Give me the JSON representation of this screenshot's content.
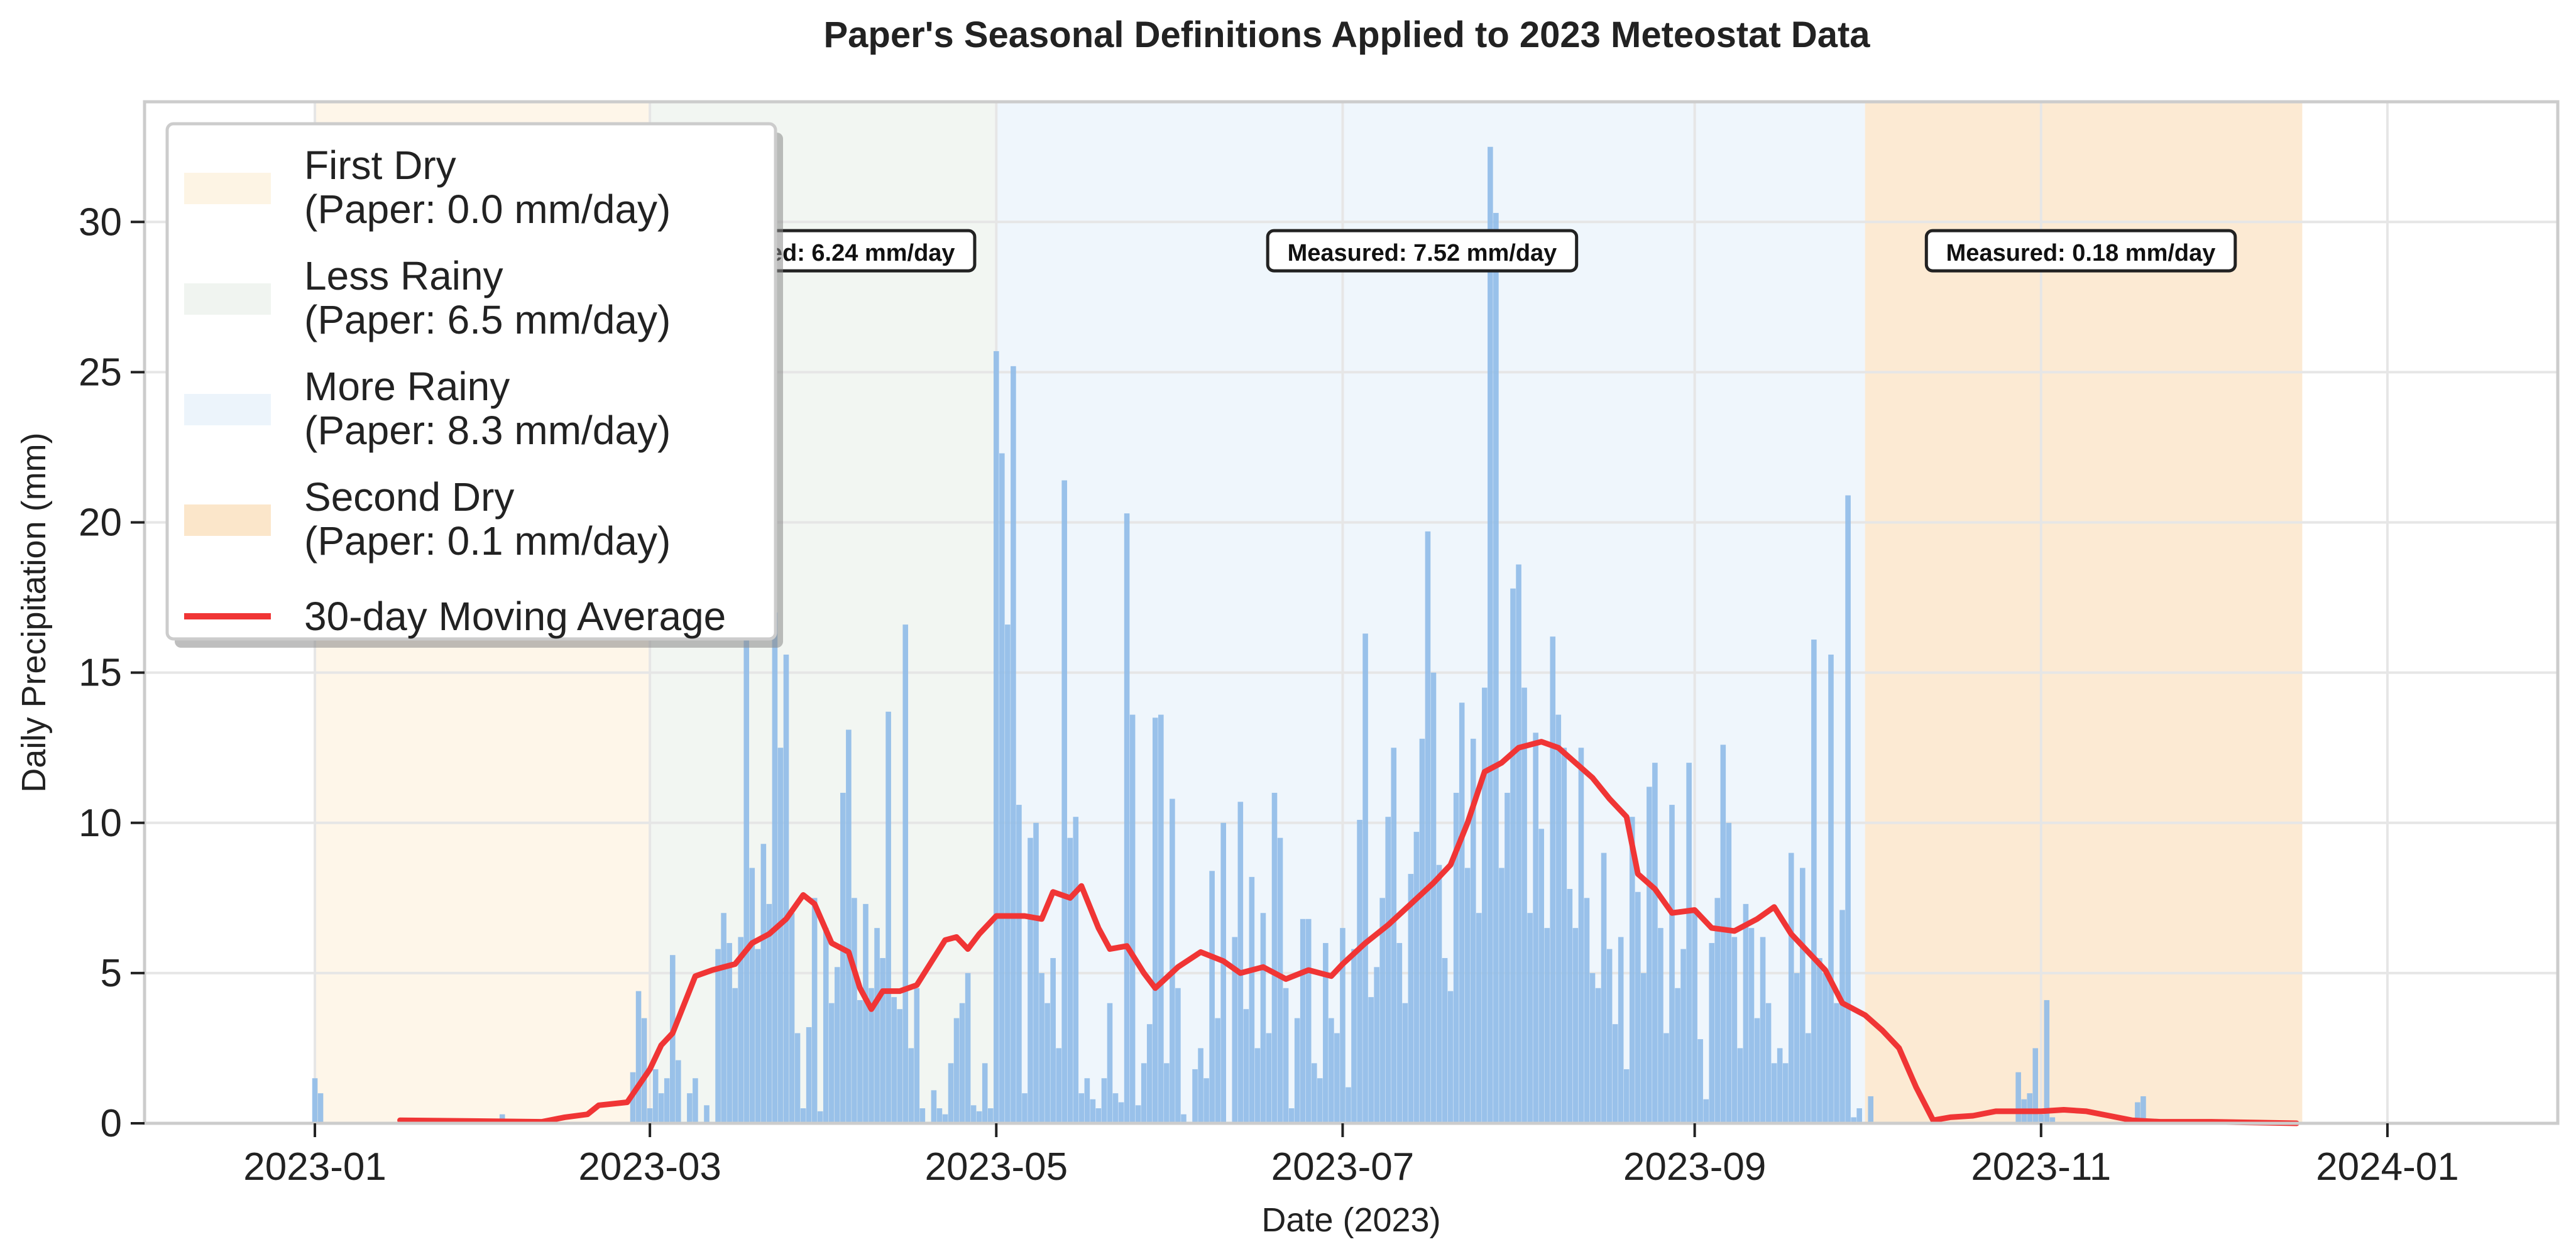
{
  "chart_data": {
    "type": "bar",
    "title": "Paper's Seasonal Definitions Applied to 2023 Meteostat Data",
    "xlabel": "Date (2023)",
    "ylabel": "Daily Precipitation (mm)",
    "xlim": [
      "2022-12-02",
      "2024-01-31"
    ],
    "ylim": [
      0,
      34
    ],
    "grid": true,
    "legend_position": "top-left",
    "x_ticks": [
      "2023-01",
      "2023-03",
      "2023-05",
      "2023-07",
      "2023-09",
      "2023-11",
      "2024-01"
    ],
    "y_ticks": [
      0,
      5,
      10,
      15,
      20,
      25,
      30
    ],
    "seasons": [
      {
        "name": "First Dry",
        "legend": [
          "First Dry",
          "(Paper: 0.0 mm/day)"
        ],
        "start": "2023-01-01",
        "end": "2023-02-28",
        "color": "#fdf3e1"
      },
      {
        "name": "Less Rainy",
        "legend": [
          "Less Rainy",
          "(Paper: 6.5 mm/day)"
        ],
        "start": "2023-03-01",
        "end": "2023-04-30",
        "color": "#eef3ee"
      },
      {
        "name": "More Rainy",
        "legend": [
          "More Rainy",
          "(Paper: 8.3 mm/day)"
        ],
        "start": "2023-05-01",
        "end": "2023-09-30",
        "color": "#eaf3fb"
      },
      {
        "name": "Second Dry",
        "legend": [
          "Second Dry",
          "(Paper: 0.1 mm/day)"
        ],
        "start": "2023-10-01",
        "end": "2023-12-16",
        "color": "#fbe3c4"
      }
    ],
    "annotations": [
      {
        "text": "Measured: 6.24 mm/day",
        "date": "2023-03-31",
        "y": 29
      },
      {
        "text": "Measured: 7.52 mm/day",
        "date": "2023-07-15",
        "y": 29
      },
      {
        "text": "Measured: 0.18 mm/day",
        "date": "2023-11-08",
        "y": 29
      }
    ],
    "bar_color": "#8fbbe8",
    "precip_series": [
      [
        "2023-01-01",
        1.5
      ],
      [
        "2023-01-02",
        1.0
      ],
      [
        "2023-02-03",
        0.3
      ],
      [
        "2023-02-26",
        1.7
      ],
      [
        "2023-02-27",
        4.4
      ],
      [
        "2023-02-28",
        3.5
      ],
      [
        "2023-03-01",
        0.5
      ],
      [
        "2023-03-02",
        1.8
      ],
      [
        "2023-03-03",
        1.0
      ],
      [
        "2023-03-04",
        1.5
      ],
      [
        "2023-03-05",
        5.6
      ],
      [
        "2023-03-06",
        2.1
      ],
      [
        "2023-03-08",
        1.0
      ],
      [
        "2023-03-09",
        1.5
      ],
      [
        "2023-03-11",
        0.6
      ],
      [
        "2023-03-13",
        5.8
      ],
      [
        "2023-03-14",
        7.0
      ],
      [
        "2023-03-15",
        6.0
      ],
      [
        "2023-03-16",
        4.5
      ],
      [
        "2023-03-17",
        6.2
      ],
      [
        "2023-03-18",
        16.8
      ],
      [
        "2023-03-19",
        8.5
      ],
      [
        "2023-03-20",
        5.8
      ],
      [
        "2023-03-21",
        9.3
      ],
      [
        "2023-03-22",
        7.3
      ],
      [
        "2023-03-23",
        17.0
      ],
      [
        "2023-03-24",
        12.5
      ],
      [
        "2023-03-25",
        15.6
      ],
      [
        "2023-03-26",
        7.0
      ],
      [
        "2023-03-27",
        3.0
      ],
      [
        "2023-03-28",
        0.5
      ],
      [
        "2023-03-29",
        3.2
      ],
      [
        "2023-03-30",
        7.5
      ],
      [
        "2023-03-31",
        0.4
      ],
      [
        "2023-04-01",
        6.5
      ],
      [
        "2023-04-02",
        4.0
      ],
      [
        "2023-04-03",
        5.2
      ],
      [
        "2023-04-04",
        11.0
      ],
      [
        "2023-04-05",
        13.1
      ],
      [
        "2023-04-06",
        7.5
      ],
      [
        "2023-04-07",
        4.1
      ],
      [
        "2023-04-08",
        7.3
      ],
      [
        "2023-04-09",
        4.5
      ],
      [
        "2023-04-10",
        6.5
      ],
      [
        "2023-04-11",
        5.5
      ],
      [
        "2023-04-12",
        13.7
      ],
      [
        "2023-04-13",
        4.2
      ],
      [
        "2023-04-14",
        3.8
      ],
      [
        "2023-04-15",
        16.6
      ],
      [
        "2023-04-16",
        2.5
      ],
      [
        "2023-04-17",
        4.5
      ],
      [
        "2023-04-18",
        0.5
      ],
      [
        "2023-04-20",
        1.1
      ],
      [
        "2023-04-21",
        0.5
      ],
      [
        "2023-04-22",
        0.3
      ],
      [
        "2023-04-23",
        2.0
      ],
      [
        "2023-04-24",
        3.5
      ],
      [
        "2023-04-25",
        4.0
      ],
      [
        "2023-04-26",
        5.0
      ],
      [
        "2023-04-27",
        0.6
      ],
      [
        "2023-04-28",
        0.4
      ],
      [
        "2023-04-29",
        2.0
      ],
      [
        "2023-04-30",
        0.5
      ],
      [
        "2023-05-01",
        25.7
      ],
      [
        "2023-05-02",
        22.3
      ],
      [
        "2023-05-03",
        16.6
      ],
      [
        "2023-05-04",
        25.2
      ],
      [
        "2023-05-05",
        10.6
      ],
      [
        "2023-05-06",
        1.0
      ],
      [
        "2023-05-07",
        9.5
      ],
      [
        "2023-05-08",
        10.0
      ],
      [
        "2023-05-09",
        5.0
      ],
      [
        "2023-05-10",
        4.0
      ],
      [
        "2023-05-11",
        5.5
      ],
      [
        "2023-05-12",
        2.5
      ],
      [
        "2023-05-13",
        21.4
      ],
      [
        "2023-05-14",
        9.5
      ],
      [
        "2023-05-15",
        10.2
      ],
      [
        "2023-05-16",
        1.0
      ],
      [
        "2023-05-17",
        1.5
      ],
      [
        "2023-05-18",
        0.8
      ],
      [
        "2023-05-19",
        0.5
      ],
      [
        "2023-05-20",
        1.5
      ],
      [
        "2023-05-21",
        4.0
      ],
      [
        "2023-05-22",
        1.0
      ],
      [
        "2023-05-23",
        0.7
      ],
      [
        "2023-05-24",
        20.3
      ],
      [
        "2023-05-25",
        13.6
      ],
      [
        "2023-05-26",
        0.6
      ],
      [
        "2023-05-27",
        2.0
      ],
      [
        "2023-05-28",
        3.3
      ],
      [
        "2023-05-29",
        13.5
      ],
      [
        "2023-05-30",
        13.6
      ],
      [
        "2023-05-31",
        2.0
      ],
      [
        "2023-06-01",
        10.8
      ],
      [
        "2023-06-02",
        4.5
      ],
      [
        "2023-06-03",
        0.3
      ],
      [
        "2023-06-05",
        1.8
      ],
      [
        "2023-06-06",
        2.5
      ],
      [
        "2023-06-07",
        1.5
      ],
      [
        "2023-06-08",
        8.4
      ],
      [
        "2023-06-09",
        3.5
      ],
      [
        "2023-06-10",
        10.0
      ],
      [
        "2023-06-12",
        6.2
      ],
      [
        "2023-06-13",
        10.7
      ],
      [
        "2023-06-14",
        3.8
      ],
      [
        "2023-06-15",
        8.2
      ],
      [
        "2023-06-16",
        2.5
      ],
      [
        "2023-06-17",
        7.0
      ],
      [
        "2023-06-18",
        3.0
      ],
      [
        "2023-06-19",
        11.0
      ],
      [
        "2023-06-20",
        9.5
      ],
      [
        "2023-06-21",
        4.5
      ],
      [
        "2023-06-22",
        0.5
      ],
      [
        "2023-06-23",
        3.5
      ],
      [
        "2023-06-24",
        6.8
      ],
      [
        "2023-06-25",
        6.8
      ],
      [
        "2023-06-26",
        2.0
      ],
      [
        "2023-06-27",
        1.5
      ],
      [
        "2023-06-28",
        6.0
      ],
      [
        "2023-06-29",
        3.5
      ],
      [
        "2023-06-30",
        3.0
      ],
      [
        "2023-07-01",
        6.5
      ],
      [
        "2023-07-02",
        1.2
      ],
      [
        "2023-07-03",
        5.8
      ],
      [
        "2023-07-04",
        10.1
      ],
      [
        "2023-07-05",
        16.3
      ],
      [
        "2023-07-06",
        4.2
      ],
      [
        "2023-07-07",
        5.2
      ],
      [
        "2023-07-08",
        7.5
      ],
      [
        "2023-07-09",
        10.2
      ],
      [
        "2023-07-10",
        12.5
      ],
      [
        "2023-07-11",
        6.0
      ],
      [
        "2023-07-12",
        4.0
      ],
      [
        "2023-07-13",
        8.3
      ],
      [
        "2023-07-14",
        9.7
      ],
      [
        "2023-07-15",
        12.8
      ],
      [
        "2023-07-16",
        19.7
      ],
      [
        "2023-07-17",
        15.0
      ],
      [
        "2023-07-18",
        8.6
      ],
      [
        "2023-07-19",
        5.5
      ],
      [
        "2023-07-20",
        4.4
      ],
      [
        "2023-07-21",
        11.0
      ],
      [
        "2023-07-22",
        14.0
      ],
      [
        "2023-07-23",
        8.5
      ],
      [
        "2023-07-24",
        12.8
      ],
      [
        "2023-07-25",
        7.0
      ],
      [
        "2023-07-26",
        14.5
      ],
      [
        "2023-07-27",
        32.5
      ],
      [
        "2023-07-28",
        30.3
      ],
      [
        "2023-07-29",
        8.5
      ],
      [
        "2023-07-30",
        11.0
      ],
      [
        "2023-07-31",
        17.8
      ],
      [
        "2023-08-01",
        18.6
      ],
      [
        "2023-08-02",
        14.5
      ],
      [
        "2023-08-03",
        7.0
      ],
      [
        "2023-08-04",
        13.0
      ],
      [
        "2023-08-05",
        9.8
      ],
      [
        "2023-08-06",
        6.5
      ],
      [
        "2023-08-07",
        16.2
      ],
      [
        "2023-08-08",
        13.6
      ],
      [
        "2023-08-09",
        12.5
      ],
      [
        "2023-08-10",
        7.8
      ],
      [
        "2023-08-11",
        6.5
      ],
      [
        "2023-08-12",
        12.5
      ],
      [
        "2023-08-13",
        7.5
      ],
      [
        "2023-08-14",
        5.0
      ],
      [
        "2023-08-15",
        4.5
      ],
      [
        "2023-08-16",
        9.0
      ],
      [
        "2023-08-17",
        5.8
      ],
      [
        "2023-08-18",
        3.3
      ],
      [
        "2023-08-19",
        6.2
      ],
      [
        "2023-08-20",
        1.8
      ],
      [
        "2023-08-21",
        10.2
      ],
      [
        "2023-08-22",
        7.7
      ],
      [
        "2023-08-23",
        5.0
      ],
      [
        "2023-08-24",
        11.2
      ],
      [
        "2023-08-25",
        12.0
      ],
      [
        "2023-08-26",
        6.5
      ],
      [
        "2023-08-27",
        3.0
      ],
      [
        "2023-08-28",
        10.6
      ],
      [
        "2023-08-29",
        4.5
      ],
      [
        "2023-08-30",
        5.8
      ],
      [
        "2023-08-31",
        12.0
      ],
      [
        "2023-09-01",
        7.0
      ],
      [
        "2023-09-02",
        2.8
      ],
      [
        "2023-09-03",
        0.8
      ],
      [
        "2023-09-04",
        6.0
      ],
      [
        "2023-09-05",
        7.5
      ],
      [
        "2023-09-06",
        12.6
      ],
      [
        "2023-09-07",
        10.0
      ],
      [
        "2023-09-08",
        6.2
      ],
      [
        "2023-09-09",
        2.5
      ],
      [
        "2023-09-10",
        7.3
      ],
      [
        "2023-09-11",
        6.5
      ],
      [
        "2023-09-12",
        3.5
      ],
      [
        "2023-09-13",
        6.2
      ],
      [
        "2023-09-14",
        4.0
      ],
      [
        "2023-09-15",
        2.0
      ],
      [
        "2023-09-16",
        2.5
      ],
      [
        "2023-09-17",
        2.0
      ],
      [
        "2023-09-18",
        9.0
      ],
      [
        "2023-09-19",
        5.0
      ],
      [
        "2023-09-20",
        8.5
      ],
      [
        "2023-09-21",
        3.0
      ],
      [
        "2023-09-22",
        16.1
      ],
      [
        "2023-09-23",
        5.5
      ],
      [
        "2023-09-24",
        5.0
      ],
      [
        "2023-09-25",
        15.6
      ],
      [
        "2023-09-26",
        4.0
      ],
      [
        "2023-09-27",
        7.1
      ],
      [
        "2023-09-28",
        20.9
      ],
      [
        "2023-09-29",
        0.2
      ],
      [
        "2023-09-30",
        0.5
      ],
      [
        "2023-10-02",
        0.9
      ],
      [
        "2023-10-28",
        1.7
      ],
      [
        "2023-10-29",
        0.8
      ],
      [
        "2023-10-30",
        1.0
      ],
      [
        "2023-10-31",
        2.5
      ],
      [
        "2023-11-01",
        0.3
      ],
      [
        "2023-11-02",
        4.1
      ],
      [
        "2023-11-03",
        0.2
      ],
      [
        "2023-11-18",
        0.7
      ],
      [
        "2023-11-19",
        0.9
      ]
    ],
    "moving_average": {
      "name": "30-day Moving Average",
      "color": "#f03535",
      "points": [
        [
          "2023-01-16",
          0.1
        ],
        [
          "2023-02-10",
          0.05
        ],
        [
          "2023-02-14",
          0.2
        ],
        [
          "2023-02-18",
          0.3
        ],
        [
          "2023-02-20",
          0.6
        ],
        [
          "2023-02-25",
          0.7
        ],
        [
          "2023-03-01",
          1.8
        ],
        [
          "2023-03-03",
          2.6
        ],
        [
          "2023-03-05",
          3.0
        ],
        [
          "2023-03-09",
          4.9
        ],
        [
          "2023-03-12",
          5.1
        ],
        [
          "2023-03-16",
          5.3
        ],
        [
          "2023-03-19",
          6.0
        ],
        [
          "2023-03-22",
          6.3
        ],
        [
          "2023-03-25",
          6.8
        ],
        [
          "2023-03-28",
          7.6
        ],
        [
          "2023-03-30",
          7.3
        ],
        [
          "2023-04-02",
          6.0
        ],
        [
          "2023-04-05",
          5.7
        ],
        [
          "2023-04-07",
          4.5
        ],
        [
          "2023-04-09",
          3.8
        ],
        [
          "2023-04-11",
          4.4
        ],
        [
          "2023-04-14",
          4.4
        ],
        [
          "2023-04-17",
          4.6
        ],
        [
          "2023-04-20",
          5.5
        ],
        [
          "2023-04-22",
          6.1
        ],
        [
          "2023-04-24",
          6.2
        ],
        [
          "2023-04-26",
          5.8
        ],
        [
          "2023-04-28",
          6.3
        ],
        [
          "2023-05-01",
          6.9
        ],
        [
          "2023-05-03",
          6.9
        ],
        [
          "2023-05-06",
          6.9
        ],
        [
          "2023-05-09",
          6.8
        ],
        [
          "2023-05-11",
          7.7
        ],
        [
          "2023-05-14",
          7.5
        ],
        [
          "2023-05-16",
          7.9
        ],
        [
          "2023-05-19",
          6.5
        ],
        [
          "2023-05-21",
          5.8
        ],
        [
          "2023-05-24",
          5.9
        ],
        [
          "2023-05-27",
          5.0
        ],
        [
          "2023-05-29",
          4.5
        ],
        [
          "2023-06-02",
          5.2
        ],
        [
          "2023-06-06",
          5.7
        ],
        [
          "2023-06-10",
          5.4
        ],
        [
          "2023-06-13",
          5.0
        ],
        [
          "2023-06-17",
          5.2
        ],
        [
          "2023-06-21",
          4.8
        ],
        [
          "2023-06-25",
          5.1
        ],
        [
          "2023-06-29",
          4.9
        ],
        [
          "2023-07-01",
          5.3
        ],
        [
          "2023-07-05",
          6.0
        ],
        [
          "2023-07-09",
          6.6
        ],
        [
          "2023-07-13",
          7.3
        ],
        [
          "2023-07-17",
          8.0
        ],
        [
          "2023-07-20",
          8.6
        ],
        [
          "2023-07-23",
          10.0
        ],
        [
          "2023-07-26",
          11.7
        ],
        [
          "2023-07-29",
          12.0
        ],
        [
          "2023-08-01",
          12.5
        ],
        [
          "2023-08-05",
          12.7
        ],
        [
          "2023-08-08",
          12.5
        ],
        [
          "2023-08-11",
          12.0
        ],
        [
          "2023-08-14",
          11.5
        ],
        [
          "2023-08-17",
          10.8
        ],
        [
          "2023-08-20",
          10.2
        ],
        [
          "2023-08-22",
          8.3
        ],
        [
          "2023-08-25",
          7.8
        ],
        [
          "2023-08-28",
          7.0
        ],
        [
          "2023-09-01",
          7.1
        ],
        [
          "2023-09-04",
          6.5
        ],
        [
          "2023-09-08",
          6.4
        ],
        [
          "2023-09-12",
          6.8
        ],
        [
          "2023-09-15",
          7.2
        ],
        [
          "2023-09-18",
          6.3
        ],
        [
          "2023-09-21",
          5.7
        ],
        [
          "2023-09-24",
          5.1
        ],
        [
          "2023-09-27",
          4.0
        ],
        [
          "2023-10-01",
          3.6
        ],
        [
          "2023-10-04",
          3.1
        ],
        [
          "2023-10-07",
          2.5
        ],
        [
          "2023-10-10",
          1.2
        ],
        [
          "2023-10-13",
          0.1
        ],
        [
          "2023-10-16",
          0.2
        ],
        [
          "2023-10-20",
          0.25
        ],
        [
          "2023-10-24",
          0.4
        ],
        [
          "2023-10-28",
          0.4
        ],
        [
          "2023-11-01",
          0.4
        ],
        [
          "2023-11-05",
          0.45
        ],
        [
          "2023-11-09",
          0.4
        ],
        [
          "2023-11-13",
          0.25
        ],
        [
          "2023-11-17",
          0.1
        ],
        [
          "2023-11-22",
          0.05
        ],
        [
          "2023-12-01",
          0.05
        ],
        [
          "2023-12-10",
          0.02
        ],
        [
          "2023-12-16",
          0.0
        ]
      ]
    }
  }
}
